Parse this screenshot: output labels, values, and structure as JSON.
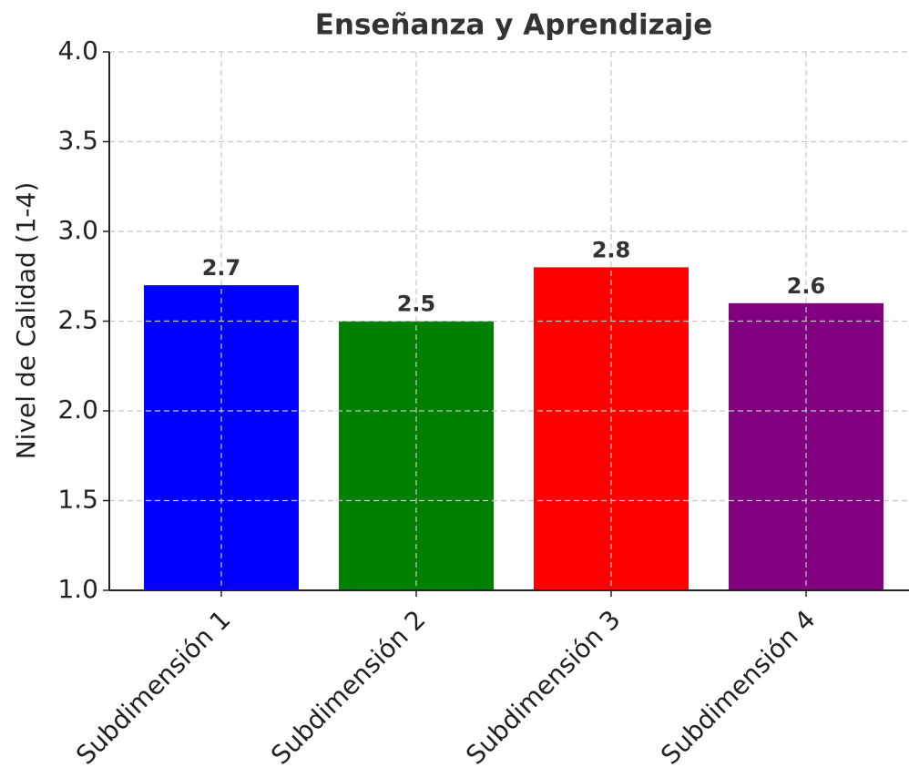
{
  "chart_data": {
    "type": "bar",
    "title": "Enseñanza y Aprendizaje",
    "y_label": "Nivel de Calidad (1-4)",
    "categories": [
      "Subdimensión 1",
      "Subdimensión 2",
      "Subdimensión 3",
      "Subdimensión 4"
    ],
    "values": [
      2.7,
      2.5,
      2.8,
      2.6
    ],
    "colors": [
      "#0000ff",
      "#008000",
      "#ff0000",
      "#800080"
    ],
    "ylim": [
      1.0,
      4.0
    ],
    "yticks": [
      {
        "value": 1.0,
        "label": "1.0"
      },
      1.5,
      {
        "value": 2.0,
        "label": "2.0"
      },
      2.5,
      {
        "value": 3.0,
        "label": "3.0"
      },
      3.5,
      {
        "value": 4.0,
        "label": "4.0"
      }
    ],
    "grid": true
  }
}
